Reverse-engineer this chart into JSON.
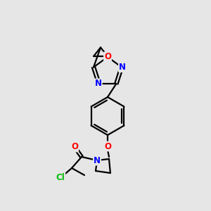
{
  "background_color": "#e6e6e6",
  "bond_color": "#000000",
  "atom_colors": {
    "O": "#ff0000",
    "N": "#0000ff",
    "Cl": "#00bb00",
    "C": "#000000"
  },
  "figsize": [
    3.0,
    3.0
  ],
  "dpi": 100
}
